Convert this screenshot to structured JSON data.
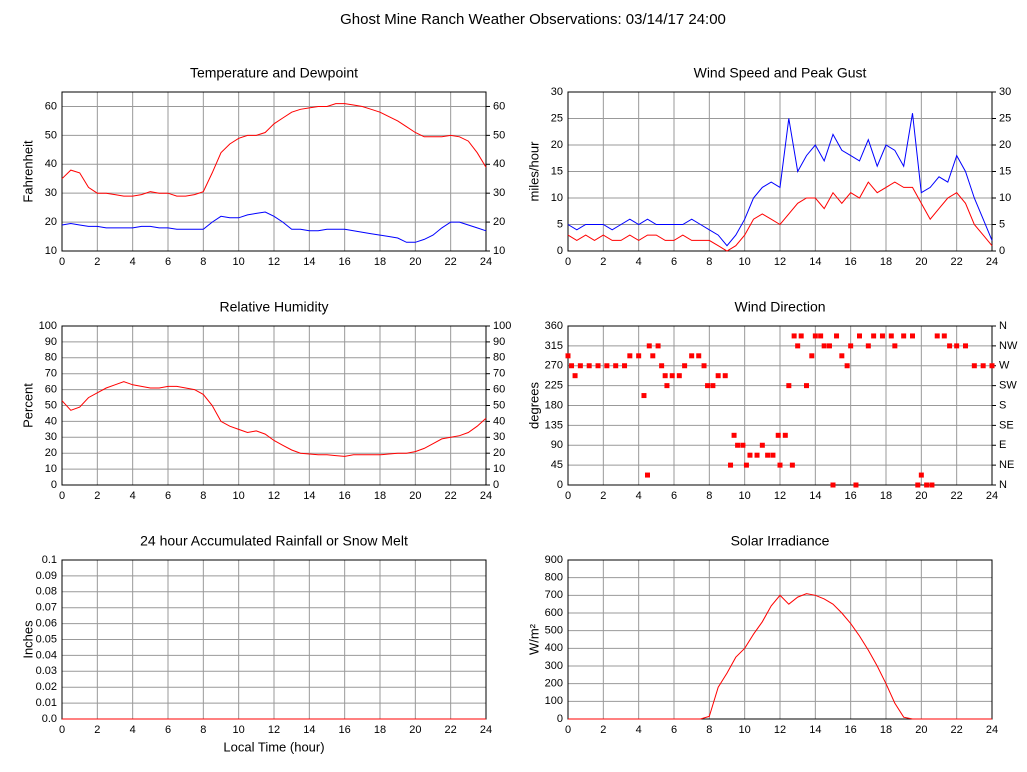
{
  "title": "Ghost Mine Ranch Weather Observations: 03/14/17 24:00",
  "chart_data": [
    {
      "type": "line",
      "title": "Temperature and Dewpoint",
      "ylabel": "Fahrenheit",
      "x": [
        0,
        0.5,
        1,
        1.5,
        2,
        2.5,
        3,
        3.5,
        4,
        4.5,
        5,
        5.5,
        6,
        6.5,
        7,
        7.5,
        8,
        8.5,
        9,
        9.5,
        10,
        10.5,
        11,
        11.5,
        12,
        12.5,
        13,
        13.5,
        14,
        14.5,
        15,
        15.5,
        16,
        16.5,
        17,
        17.5,
        18,
        18.5,
        19,
        19.5,
        20,
        20.5,
        21,
        21.5,
        22,
        22.5,
        23,
        23.5,
        24
      ],
      "series": [
        {
          "color": "#ff0000",
          "values": [
            35,
            38,
            37,
            32,
            30,
            30,
            29.5,
            29,
            29,
            29.5,
            30.5,
            30,
            30,
            29,
            29,
            29.5,
            30.5,
            37,
            44,
            47,
            49,
            50,
            50,
            51,
            54,
            56,
            58,
            59,
            59.5,
            60,
            60,
            61,
            61,
            60.5,
            60,
            59,
            58,
            56.5,
            55,
            53,
            51,
            49.5,
            49.5,
            49.5,
            50,
            49.5,
            48,
            44,
            39
          ]
        },
        {
          "color": "#0000ff",
          "values": [
            19,
            19.5,
            19,
            18.5,
            18.5,
            18,
            18,
            18,
            18,
            18.5,
            18.5,
            18,
            18,
            17.5,
            17.5,
            17.5,
            17.5,
            20,
            22,
            21.5,
            21.5,
            22.5,
            23,
            23.5,
            22,
            20,
            17.5,
            17.5,
            17,
            17,
            17.5,
            17.5,
            17.5,
            17,
            16.5,
            16,
            15.5,
            15,
            14.5,
            13,
            13,
            14,
            15.5,
            18,
            20,
            20,
            19,
            18,
            17
          ]
        }
      ],
      "xlim": [
        0,
        24
      ],
      "xticks": [
        0,
        2,
        4,
        6,
        8,
        10,
        12,
        14,
        16,
        18,
        20,
        22,
        24
      ],
      "ylim": [
        10,
        65
      ],
      "yticks": [
        10,
        20,
        30,
        40,
        50,
        60
      ],
      "y2lim": [
        10,
        65
      ],
      "y2ticks": [
        10,
        20,
        30,
        40,
        50,
        60
      ],
      "grid": true
    },
    {
      "type": "line",
      "title": "Wind Speed and Peak Gust",
      "ylabel": "miles/hour",
      "x": [
        0,
        0.5,
        1,
        1.5,
        2,
        2.5,
        3,
        3.5,
        4,
        4.5,
        5,
        5.5,
        6,
        6.5,
        7,
        7.5,
        8,
        8.5,
        9,
        9.5,
        10,
        10.5,
        11,
        11.5,
        12,
        12.5,
        13,
        13.5,
        14,
        14.5,
        15,
        15.5,
        16,
        16.5,
        17,
        17.5,
        18,
        18.5,
        19,
        19.5,
        20,
        20.5,
        21,
        21.5,
        22,
        22.5,
        23,
        23.5,
        24
      ],
      "series": [
        {
          "color": "#0000ff",
          "values": [
            5,
            4,
            5,
            5,
            5,
            4,
            5,
            6,
            5,
            6,
            5,
            5,
            5,
            5,
            6,
            5,
            4,
            3,
            1,
            3,
            6,
            10,
            12,
            13,
            12,
            25,
            15,
            18,
            20,
            17,
            22,
            19,
            18,
            17,
            21,
            16,
            20,
            19,
            16,
            26,
            11,
            12,
            14,
            13,
            18,
            15,
            10,
            6,
            2
          ]
        },
        {
          "color": "#ff0000",
          "values": [
            3,
            2,
            3,
            2,
            3,
            2,
            2,
            3,
            2,
            3,
            3,
            2,
            2,
            3,
            2,
            2,
            2,
            1,
            0,
            1,
            3,
            6,
            7,
            6,
            5,
            7,
            9,
            10,
            10,
            8,
            11,
            9,
            11,
            10,
            13,
            11,
            12,
            13,
            12,
            12,
            9,
            6,
            8,
            10,
            11,
            9,
            5,
            3,
            1
          ]
        }
      ],
      "xlim": [
        0,
        24
      ],
      "xticks": [
        0,
        2,
        4,
        6,
        8,
        10,
        12,
        14,
        16,
        18,
        20,
        22,
        24
      ],
      "ylim": [
        0,
        30
      ],
      "yticks": [
        0,
        5,
        10,
        15,
        20,
        25,
        30
      ],
      "y2lim": [
        0,
        30
      ],
      "y2ticks": [
        0,
        5,
        10,
        15,
        20,
        25,
        30
      ],
      "grid": true
    },
    {
      "type": "line",
      "title": "Relative Humidity",
      "ylabel": "Percent",
      "x": [
        0,
        0.5,
        1,
        1.5,
        2,
        2.5,
        3,
        3.5,
        4,
        4.5,
        5,
        5.5,
        6,
        6.5,
        7,
        7.5,
        8,
        8.5,
        9,
        9.5,
        10,
        10.5,
        11,
        11.5,
        12,
        12.5,
        13,
        13.5,
        14,
        14.5,
        15,
        15.5,
        16,
        16.5,
        17,
        17.5,
        18,
        18.5,
        19,
        19.5,
        20,
        20.5,
        21,
        21.5,
        22,
        22.5,
        23,
        23.5,
        24
      ],
      "series": [
        {
          "color": "#ff0000",
          "values": [
            53,
            47,
            49,
            55,
            58,
            61,
            63,
            65,
            63,
            62,
            61,
            61,
            62,
            62,
            61,
            60,
            57,
            50,
            40,
            37,
            35,
            33,
            34,
            32,
            28,
            25,
            22,
            20,
            19.5,
            19,
            19,
            18.5,
            18,
            19,
            19,
            19,
            19,
            19.5,
            20,
            20,
            21,
            23,
            26,
            29,
            30,
            31,
            33,
            37,
            42
          ]
        }
      ],
      "xlim": [
        0,
        24
      ],
      "xticks": [
        0,
        2,
        4,
        6,
        8,
        10,
        12,
        14,
        16,
        18,
        20,
        22,
        24
      ],
      "ylim": [
        0,
        100
      ],
      "yticks": [
        0,
        10,
        20,
        30,
        40,
        50,
        60,
        70,
        80,
        90,
        100
      ],
      "y2lim": [
        0,
        100
      ],
      "y2ticks": [
        0,
        10,
        20,
        30,
        40,
        50,
        60,
        70,
        80,
        90,
        100
      ],
      "grid": true
    },
    {
      "type": "scatter",
      "title": "Wind Direction",
      "ylabel": "degrees",
      "color": "#ff0000",
      "x": [
        0,
        0.2,
        0.4,
        0.7,
        1.2,
        1.7,
        2.2,
        2.7,
        3.2,
        3.5,
        4,
        4.3,
        4.5,
        4.6,
        4.8,
        5.1,
        5.3,
        5.5,
        5.6,
        5.9,
        6.3,
        6.6,
        7,
        7.4,
        7.7,
        7.9,
        8.2,
        8.5,
        8.9,
        9.2,
        9.4,
        9.6,
        9.9,
        10.1,
        10.3,
        10.7,
        11,
        11.3,
        11.6,
        11.9,
        12,
        12.3,
        12.5,
        12.7,
        12.8,
        13,
        13.2,
        13.5,
        13.8,
        14,
        14.3,
        14.5,
        14.8,
        15,
        15.2,
        15.5,
        15.8,
        16,
        16.3,
        16.5,
        17,
        17.3,
        17.8,
        18.3,
        18.5,
        19,
        19.5,
        19.8,
        20,
        20.3,
        20.6,
        20.9,
        21.3,
        21.6,
        22,
        22.5,
        23,
        23.5,
        24
      ],
      "values": [
        292.5,
        270,
        247.5,
        270,
        270,
        270,
        270,
        270,
        270,
        292.5,
        292.5,
        202.5,
        22.5,
        315,
        292.5,
        315,
        270,
        247.5,
        225,
        247.5,
        247.5,
        270,
        292.5,
        292.5,
        270,
        225,
        225,
        247.5,
        247.5,
        45,
        112.5,
        90,
        90,
        45,
        67.5,
        67.5,
        90,
        67.5,
        67.5,
        112.5,
        45,
        112.5,
        225,
        45,
        337.5,
        315,
        337.5,
        225,
        292.5,
        337.5,
        337.5,
        315,
        315,
        0,
        337.5,
        292.5,
        270,
        315,
        0,
        337.5,
        315,
        337.5,
        337.5,
        337.5,
        315,
        337.5,
        337.5,
        0,
        22.5,
        0,
        0,
        337.5,
        337.5,
        315,
        315,
        315,
        270,
        270,
        270
      ],
      "xlim": [
        0,
        24
      ],
      "xticks": [
        0,
        2,
        4,
        6,
        8,
        10,
        12,
        14,
        16,
        18,
        20,
        22,
        24
      ],
      "ylim": [
        0,
        360
      ],
      "yticks": [
        0,
        45,
        90,
        135,
        180,
        225,
        270,
        315,
        360
      ],
      "y2lim": [
        0,
        360
      ],
      "y2ticks": [
        {
          "value": 0,
          "label": "N"
        },
        {
          "value": 45,
          "label": "NE"
        },
        {
          "value": 90,
          "label": "E"
        },
        {
          "value": 135,
          "label": "SE"
        },
        {
          "value": 180,
          "label": "S"
        },
        {
          "value": 225,
          "label": "SW"
        },
        {
          "value": 270,
          "label": "W"
        },
        {
          "value": 315,
          "label": "NW"
        },
        {
          "value": 360,
          "label": "N"
        }
      ],
      "grid": true
    },
    {
      "type": "line",
      "title": "24 hour Accumulated Rainfall or Snow Melt",
      "ylabel": "Inches",
      "xlabel": "Local Time (hour)",
      "x": [
        0,
        24
      ],
      "series": [
        {
          "color": "#ff0000",
          "values": [
            0,
            0
          ]
        }
      ],
      "xlim": [
        0,
        24
      ],
      "xticks": [
        0,
        2,
        4,
        6,
        8,
        10,
        12,
        14,
        16,
        18,
        20,
        22,
        24
      ],
      "ylim": [
        0,
        0.1
      ],
      "yticks": [
        {
          "value": 0,
          "label": "0.0"
        },
        0.01,
        0.02,
        0.03,
        0.04,
        0.05,
        0.06,
        0.07,
        0.08,
        0.09,
        0.1
      ],
      "grid": true
    },
    {
      "type": "line",
      "title": "Solar Irradiance",
      "ylabel": "W/m²",
      "x": [
        0,
        0.5,
        1,
        1.5,
        2,
        2.5,
        3,
        3.5,
        4,
        4.5,
        5,
        5.5,
        6,
        6.5,
        7,
        7.5,
        8,
        8.5,
        9,
        9.5,
        10,
        10.5,
        11,
        11.5,
        12,
        12.5,
        13,
        13.5,
        14,
        14.5,
        15,
        15.5,
        16,
        16.5,
        17,
        17.5,
        18,
        18.5,
        19,
        19.5,
        20,
        20.5,
        21,
        21.5,
        22,
        22.5,
        23,
        23.5,
        24
      ],
      "series": [
        {
          "color": "#ff0000",
          "values": [
            0,
            0,
            0,
            0,
            0,
            0,
            0,
            0,
            0,
            0,
            0,
            0,
            0,
            0,
            0,
            0,
            15,
            180,
            260,
            350,
            400,
            480,
            550,
            640,
            700,
            650,
            690,
            710,
            700,
            680,
            650,
            600,
            540,
            470,
            390,
            300,
            200,
            90,
            10,
            0,
            0,
            0,
            0,
            0,
            0,
            0,
            0,
            0,
            0
          ]
        }
      ],
      "xlim": [
        0,
        24
      ],
      "xticks": [
        0,
        2,
        4,
        6,
        8,
        10,
        12,
        14,
        16,
        18,
        20,
        22,
        24
      ],
      "ylim": [
        0,
        900
      ],
      "yticks": [
        0,
        100,
        200,
        300,
        400,
        500,
        600,
        700,
        800,
        900
      ],
      "grid": true
    }
  ]
}
